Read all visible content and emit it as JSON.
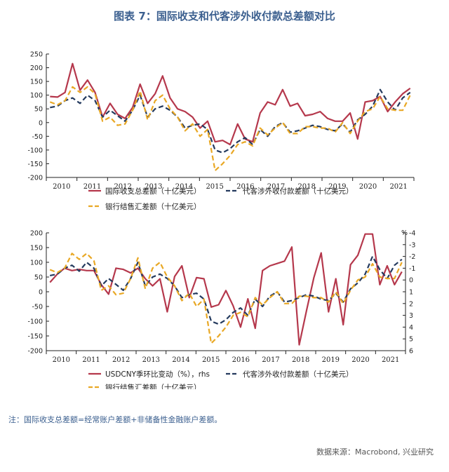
{
  "title": "图表 7：国际收支和代客涉外收付款总差额对比",
  "note": "注：国际收支总差额=经常账户差额+非储备性金融账户差额。",
  "source": "数据来源：Macrobond, 兴业研究",
  "colors": {
    "red": "#b5384c",
    "navy": "#243a5e",
    "gold": "#e9a825"
  },
  "chart_data": [
    {
      "type": "line",
      "x_ticks": [
        "2010",
        "2011",
        "2012",
        "2013",
        "2014",
        "2015",
        "2016",
        "2017",
        "2018",
        "2019",
        "2020",
        "2021"
      ],
      "ylim": [
        -200,
        250
      ],
      "y_ticks": [
        250,
        200,
        150,
        100,
        50,
        0,
        -50,
        -100,
        -150,
        -200
      ],
      "legend": [
        "国际收支总差额（十亿美元）",
        "代客涉外收付款差额（十亿美元）",
        "银行结售汇差额（十亿美元）"
      ],
      "series": [
        {
          "name": "国际收支总差额（十亿美元）",
          "color_key": "red",
          "style": "solid",
          "values": [
            95,
            93,
            110,
            215,
            118,
            155,
            110,
            20,
            70,
            30,
            15,
            55,
            140,
            70,
            105,
            170,
            90,
            50,
            40,
            20,
            -20,
            5,
            -70,
            -65,
            -80,
            -5,
            -60,
            -70,
            35,
            75,
            65,
            120,
            60,
            70,
            25,
            30,
            40,
            15,
            5,
            5,
            35,
            -60,
            75,
            80,
            95,
            40,
            75,
            105,
            125
          ]
        },
        {
          "name": "代客涉外收付款差额（十亿美元）",
          "color_key": "navy",
          "style": "dashed",
          "values": [
            55,
            60,
            80,
            90,
            70,
            100,
            80,
            20,
            45,
            25,
            5,
            45,
            100,
            20,
            50,
            60,
            45,
            20,
            -20,
            -10,
            -5,
            -25,
            -100,
            -110,
            -95,
            -70,
            -55,
            -80,
            -25,
            -50,
            -15,
            0,
            -35,
            -30,
            -20,
            -10,
            -15,
            -25,
            -30,
            -5,
            -35,
            10,
            30,
            60,
            120,
            75,
            45,
            90,
            110
          ]
        },
        {
          "name": "银行结售汇差额（十亿美元）",
          "color_key": "gold",
          "style": "dashed",
          "values": [
            75,
            65,
            80,
            130,
            110,
            130,
            105,
            5,
            20,
            -10,
            -5,
            45,
            115,
            10,
            80,
            100,
            50,
            20,
            -30,
            -5,
            -50,
            -25,
            -175,
            -150,
            -120,
            -80,
            -70,
            -85,
            -20,
            -45,
            -20,
            0,
            -40,
            -40,
            -15,
            -15,
            -20,
            -20,
            -35,
            0,
            -40,
            5,
            40,
            50,
            95,
            50,
            45,
            45,
            100
          ]
        }
      ]
    },
    {
      "type": "line",
      "x_ticks": [
        "2010",
        "2011",
        "2012",
        "2013",
        "2014",
        "2015",
        "2016",
        "2017",
        "2018",
        "2019",
        "2020",
        "2021"
      ],
      "ylim": [
        -200,
        200
      ],
      "y_ticks": [
        200,
        150,
        100,
        50,
        0,
        -50,
        -100,
        -150,
        -200
      ],
      "y2lim": [
        -4,
        6
      ],
      "y2_ticks": [
        "-4",
        "-3",
        "-2",
        "-1",
        "0",
        "1",
        "2",
        "3",
        "4",
        "5",
        "6"
      ],
      "y2_unit": "%",
      "legend": [
        "USDCNY季环比变动（%），rhs",
        "代客涉外收付款差额（十亿美元）",
        "银行结售汇差额（十亿美元）"
      ],
      "series": [
        {
          "name": "USDCNY季环比变动（%），rhs",
          "color_key": "red",
          "style": "solid",
          "axis": "right",
          "values": [
            0.2,
            -0.5,
            -1.0,
            -0.8,
            -0.9,
            -0.8,
            -0.8,
            0.4,
            1.2,
            -1.0,
            -0.9,
            -0.6,
            -1.0,
            -0.1,
            0.5,
            -0.1,
            2.7,
            -0.3,
            -1.2,
            1.5,
            -0.2,
            -0.1,
            2.3,
            2.1,
            0.9,
            2.2,
            4.0,
            1.6,
            4.1,
            -0.8,
            -1.2,
            -1.4,
            -1.6,
            -2.8,
            5.5,
            2.6,
            -0.2,
            -2.3,
            2.7,
            -0.1,
            3.8,
            -1.3,
            -2.1,
            -3.9,
            -3.9,
            0.4,
            -1.2,
            0.4,
            -0.7
          ]
        },
        {
          "name": "代客涉外收付款差额（十亿美元）",
          "color_key": "navy",
          "style": "dashed",
          "axis": "left",
          "values": [
            55,
            60,
            80,
            90,
            70,
            100,
            80,
            20,
            45,
            25,
            5,
            45,
            100,
            20,
            50,
            60,
            45,
            20,
            -20,
            -10,
            -5,
            -25,
            -100,
            -110,
            -95,
            -70,
            -55,
            -80,
            -25,
            -50,
            -15,
            0,
            -35,
            -30,
            -20,
            -10,
            -15,
            -25,
            -30,
            -5,
            -35,
            10,
            30,
            60,
            120,
            75,
            45,
            90,
            110
          ]
        },
        {
          "name": "银行结售汇差额（十亿美元）",
          "color_key": "gold",
          "style": "dashed",
          "axis": "left",
          "values": [
            75,
            65,
            80,
            130,
            110,
            130,
            105,
            5,
            20,
            -10,
            -5,
            45,
            115,
            10,
            80,
            100,
            50,
            20,
            -30,
            -5,
            -50,
            -25,
            -175,
            -150,
            -120,
            -80,
            -70,
            -85,
            -20,
            -45,
            -20,
            0,
            -40,
            -40,
            -15,
            -15,
            -20,
            -20,
            -35,
            0,
            -40,
            5,
            40,
            50,
            95,
            50,
            45,
            45,
            100
          ]
        }
      ]
    }
  ]
}
